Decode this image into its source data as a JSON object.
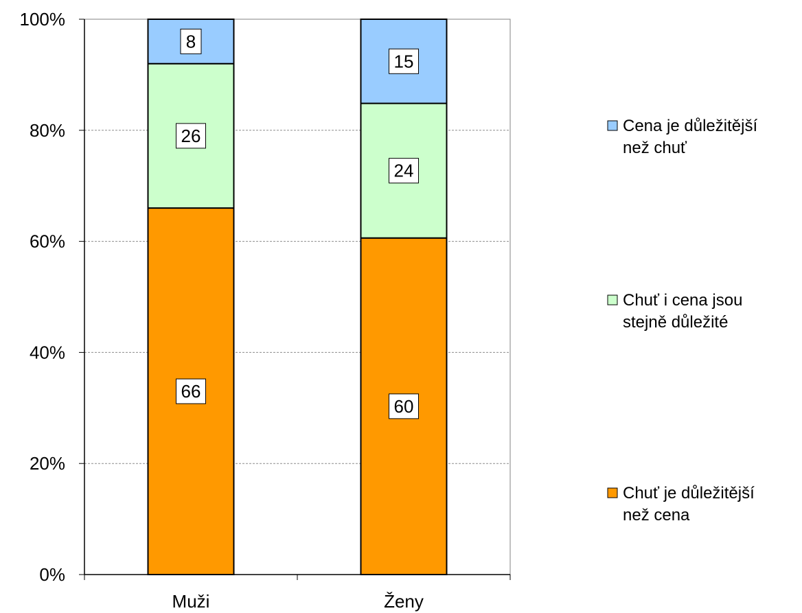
{
  "chart_data": {
    "type": "bar",
    "stacked": true,
    "normalized": true,
    "categories": [
      "Muži",
      "Ženy"
    ],
    "series": [
      {
        "name": "Chuť je důležitější než cena",
        "color": "#FF9900",
        "values": [
          66,
          60
        ]
      },
      {
        "name": "Chuť i cena jsou stejně důležité",
        "color": "#CCFFCC",
        "values": [
          26,
          24
        ]
      },
      {
        "name": "Cena je důležitější než chuť",
        "color": "#99CCFF",
        "values": [
          8,
          15
        ]
      }
    ],
    "legend_order": [
      2,
      1,
      0
    ],
    "legend_lines": [
      [
        "Cena je důležitější",
        "než chuť"
      ],
      [
        "Chuť i cena jsou",
        "stejně důležité"
      ],
      [
        "Chuť je důležitější",
        "než cena"
      ]
    ],
    "y_ticks": [
      "0%",
      "20%",
      "40%",
      "60%",
      "80%",
      "100%"
    ],
    "ylim": [
      0,
      100
    ],
    "title": "",
    "xlabel": "",
    "ylabel": "",
    "grid": "horizontal-dashed",
    "legend_position": "right"
  }
}
